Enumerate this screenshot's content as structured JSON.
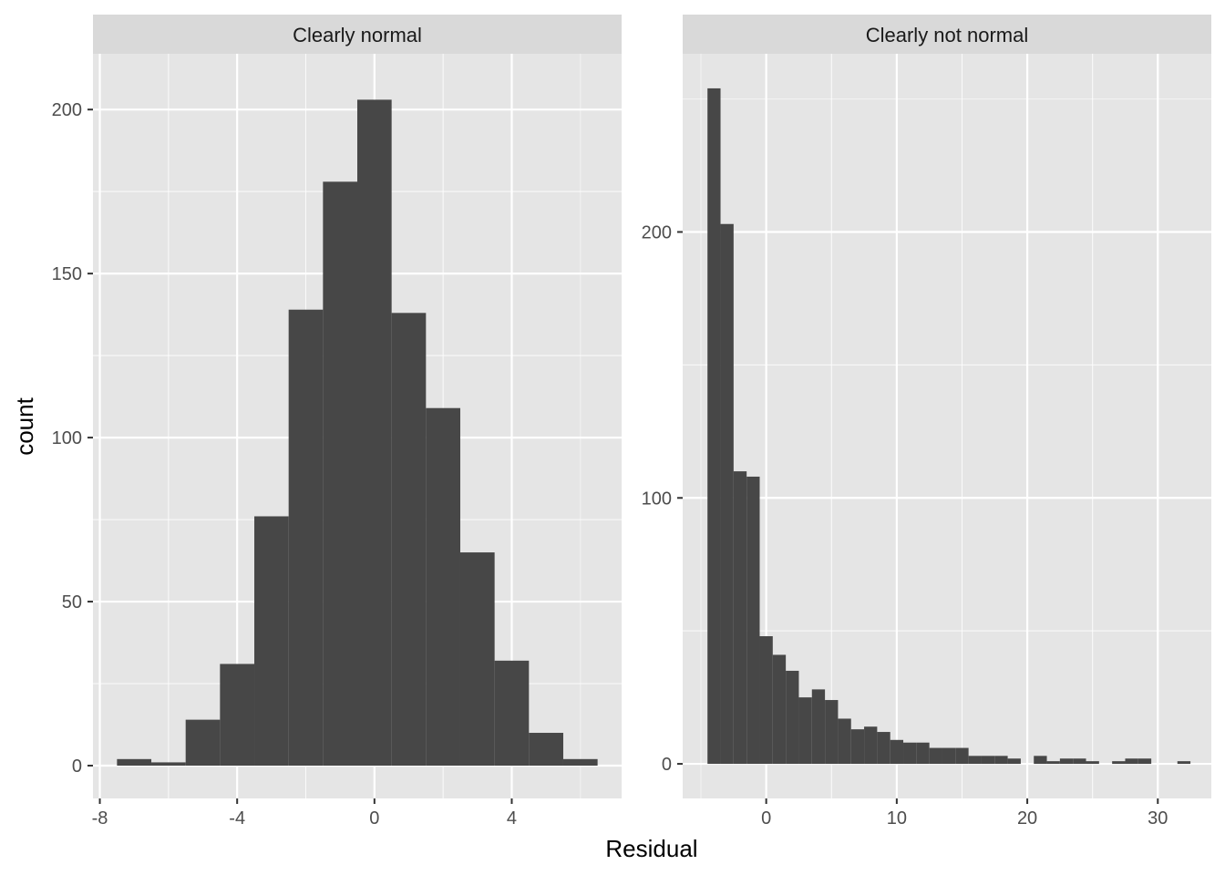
{
  "colors": {
    "panel_background": "#e5e5e5",
    "grid_major": "#ffffff",
    "strip_background": "#d9d9d9",
    "bar_fill": "#474747",
    "tick": "#333333"
  },
  "chart_data": {
    "type": "histogram-facets",
    "xlabel": "Residual",
    "ylabel": "count",
    "facets": [
      {
        "title": "Clearly normal",
        "xlim": [
          -8.2,
          7.2
        ],
        "ylim": [
          -10,
          217
        ],
        "xticks": [
          -8,
          -4,
          0,
          4
        ],
        "xtick_labels": [
          "-8",
          "-4",
          "0",
          "4"
        ],
        "yticks": [
          0,
          50,
          100,
          150,
          200
        ],
        "ytick_labels": [
          "0",
          "50",
          "100",
          "150",
          "200"
        ],
        "bins": [
          {
            "x0": -7.5,
            "x1": -6.5,
            "count": 2
          },
          {
            "x0": -6.5,
            "x1": -5.5,
            "count": 1
          },
          {
            "x0": -5.5,
            "x1": -4.5,
            "count": 14
          },
          {
            "x0": -4.5,
            "x1": -3.5,
            "count": 31
          },
          {
            "x0": -3.5,
            "x1": -2.5,
            "count": 76
          },
          {
            "x0": -2.5,
            "x1": -1.5,
            "count": 139
          },
          {
            "x0": -1.5,
            "x1": -0.5,
            "count": 178
          },
          {
            "x0": -0.5,
            "x1": 0.5,
            "count": 203
          },
          {
            "x0": 0.5,
            "x1": 1.5,
            "count": 138
          },
          {
            "x0": 1.5,
            "x1": 2.5,
            "count": 109
          },
          {
            "x0": 2.5,
            "x1": 3.5,
            "count": 65
          },
          {
            "x0": 3.5,
            "x1": 4.5,
            "count": 32
          },
          {
            "x0": 4.5,
            "x1": 5.5,
            "count": 10
          },
          {
            "x0": 5.5,
            "x1": 6.5,
            "count": 2
          }
        ]
      },
      {
        "title": "Clearly not normal",
        "xlim": [
          -6.4,
          34.1
        ],
        "ylim": [
          -13,
          267
        ],
        "xticks": [
          0,
          10,
          20,
          30
        ],
        "xtick_labels": [
          "0",
          "10",
          "20",
          "30"
        ],
        "yticks": [
          0,
          100,
          200
        ],
        "ytick_labels": [
          "0",
          "100",
          "200"
        ],
        "bins": [
          {
            "x0": -4.5,
            "x1": -3.5,
            "count": 254
          },
          {
            "x0": -3.5,
            "x1": -2.5,
            "count": 203
          },
          {
            "x0": -2.5,
            "x1": -1.5,
            "count": 110
          },
          {
            "x0": -1.5,
            "x1": -0.5,
            "count": 108
          },
          {
            "x0": -0.5,
            "x1": 0.5,
            "count": 48
          },
          {
            "x0": 0.5,
            "x1": 1.5,
            "count": 41
          },
          {
            "x0": 1.5,
            "x1": 2.5,
            "count": 35
          },
          {
            "x0": 2.5,
            "x1": 3.5,
            "count": 25
          },
          {
            "x0": 3.5,
            "x1": 4.5,
            "count": 28
          },
          {
            "x0": 4.5,
            "x1": 5.5,
            "count": 24
          },
          {
            "x0": 5.5,
            "x1": 6.5,
            "count": 17
          },
          {
            "x0": 6.5,
            "x1": 7.5,
            "count": 13
          },
          {
            "x0": 7.5,
            "x1": 8.5,
            "count": 14
          },
          {
            "x0": 8.5,
            "x1": 9.5,
            "count": 12
          },
          {
            "x0": 9.5,
            "x1": 10.5,
            "count": 9
          },
          {
            "x0": 10.5,
            "x1": 11.5,
            "count": 8
          },
          {
            "x0": 11.5,
            "x1": 12.5,
            "count": 8
          },
          {
            "x0": 12.5,
            "x1": 13.5,
            "count": 6
          },
          {
            "x0": 13.5,
            "x1": 14.5,
            "count": 6
          },
          {
            "x0": 14.5,
            "x1": 15.5,
            "count": 6
          },
          {
            "x0": 15.5,
            "x1": 16.5,
            "count": 3
          },
          {
            "x0": 16.5,
            "x1": 17.5,
            "count": 3
          },
          {
            "x0": 17.5,
            "x1": 18.5,
            "count": 3
          },
          {
            "x0": 18.5,
            "x1": 19.5,
            "count": 2
          },
          {
            "x0": 20.5,
            "x1": 21.5,
            "count": 3
          },
          {
            "x0": 21.5,
            "x1": 22.5,
            "count": 1
          },
          {
            "x0": 22.5,
            "x1": 23.5,
            "count": 2
          },
          {
            "x0": 23.5,
            "x1": 24.5,
            "count": 2
          },
          {
            "x0": 24.5,
            "x1": 25.5,
            "count": 1
          },
          {
            "x0": 26.5,
            "x1": 27.5,
            "count": 1
          },
          {
            "x0": 27.5,
            "x1": 28.5,
            "count": 2
          },
          {
            "x0": 28.5,
            "x1": 29.5,
            "count": 2
          },
          {
            "x0": 31.5,
            "x1": 32.5,
            "count": 1
          }
        ]
      }
    ]
  }
}
